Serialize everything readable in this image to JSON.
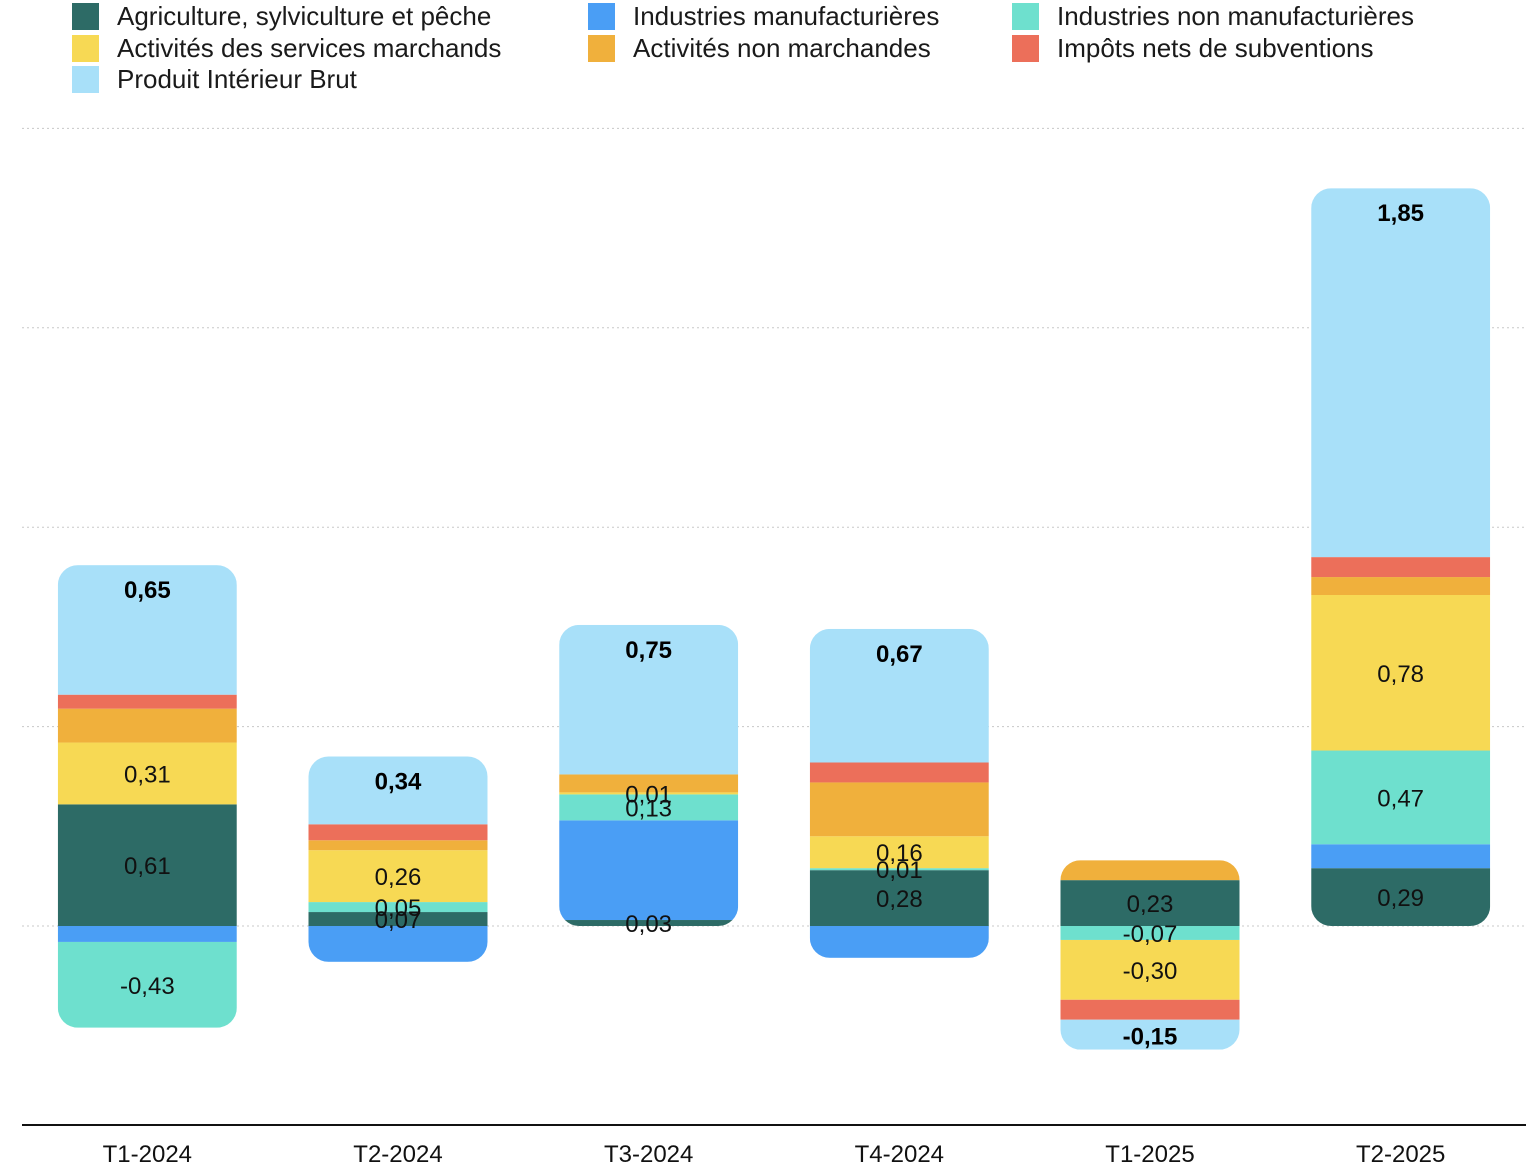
{
  "chart_data": {
    "type": "bar",
    "stacked": true,
    "categories": [
      "T1-2024",
      "T2-2024",
      "T3-2024",
      "T4-2024",
      "T1-2025",
      "T2-2025"
    ],
    "series": [
      {
        "name": "Agriculture, sylviculture et pêche",
        "color": "#2d6b66",
        "values": [
          0.61,
          0.07,
          0.03,
          0.28,
          0.23,
          0.29
        ]
      },
      {
        "name": "Industries manufacturières",
        "color": "#4a9ef5",
        "values": [
          -0.08,
          -0.18,
          0.5,
          -0.16,
          0.0,
          0.12
        ]
      },
      {
        "name": "Industries non manufacturières",
        "color": "#6ee0ce",
        "values": [
          -0.43,
          0.05,
          0.13,
          0.01,
          -0.07,
          0.47
        ]
      },
      {
        "name": "Activités des services marchands",
        "color": "#f7d954",
        "values": [
          0.31,
          0.26,
          0.01,
          0.16,
          -0.3,
          0.78
        ]
      },
      {
        "name": "Activités non marchandes",
        "color": "#f0b03c",
        "values": [
          0.17,
          0.05,
          0.09,
          0.27,
          0.1,
          0.09
        ]
      },
      {
        "name": "Impôts nets de subventions",
        "color": "#ec6f5a",
        "values": [
          0.07,
          0.08,
          0.0,
          0.1,
          -0.1,
          0.1
        ]
      }
    ],
    "series_labels": [
      [
        "0,61",
        "0,07",
        "0,03",
        "0,28",
        "0,23",
        "0,29"
      ],
      [
        "",
        "",
        "",
        "",
        "",
        ""
      ],
      [
        "-0,43",
        "0,05",
        "0,13",
        "0,01",
        "-0,07",
        "0,47"
      ],
      [
        "0,31",
        "0,26",
        "0,01",
        "0,16",
        "-0,30",
        "0,78"
      ],
      [
        "",
        "",
        "",
        "",
        "",
        ""
      ],
      [
        "",
        "",
        "",
        "",
        "",
        ""
      ]
    ],
    "total": {
      "name": "Produit Intérieur Brut",
      "color": "#a8e0f9",
      "values": [
        0.65,
        0.34,
        0.75,
        0.67,
        -0.15,
        1.85
      ],
      "labels": [
        "0,65",
        "0,34",
        "0,75",
        "0,67",
        "-0,15",
        "1,85"
      ]
    },
    "ylim": [
      -1.0,
      4.0
    ],
    "grid": true,
    "legend_position": "top",
    "xlabel": "",
    "ylabel": ""
  }
}
